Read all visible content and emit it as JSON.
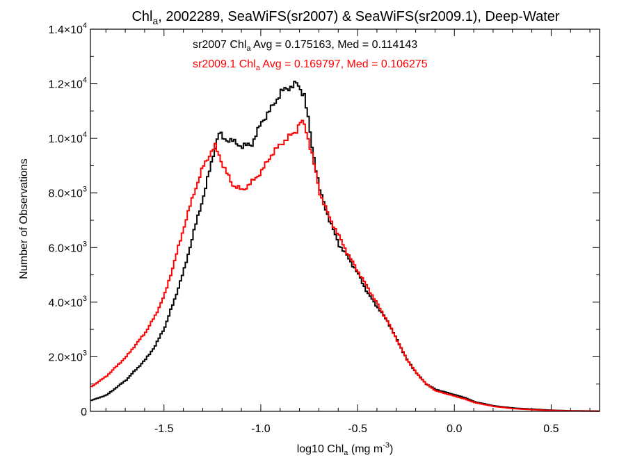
{
  "chart_data": {
    "type": "line",
    "title": {
      "prefix": "Chl",
      "sub": "a",
      "suffix": ", 2002289, SeaWiFS(sr2007) & SeaWiFS(sr2009.1), Deep-Water"
    },
    "xlabel": {
      "prefix": "log10 Chl",
      "sub": "a",
      "middle": " (mg m",
      "sup": "-3",
      "suffix": ")"
    },
    "ylabel": "Number of Observations",
    "xlim": [
      -1.88,
      0.75
    ],
    "ylim": [
      0,
      14000
    ],
    "x_ticks": [
      {
        "value": -1.5,
        "label": "-1.5"
      },
      {
        "value": -1.0,
        "label": "-1.0"
      },
      {
        "value": -0.5,
        "label": "-0.5"
      },
      {
        "value": 0.0,
        "label": "0.0"
      },
      {
        "value": 0.5,
        "label": "0.5"
      }
    ],
    "y_ticks": [
      {
        "value": 0,
        "mantissa": "0",
        "times": "",
        "base": "",
        "exp": ""
      },
      {
        "value": 2000,
        "mantissa": "2.0",
        "times": "×",
        "base": "10",
        "exp": "3"
      },
      {
        "value": 4000,
        "mantissa": "4.0",
        "times": "×",
        "base": "10",
        "exp": "3"
      },
      {
        "value": 6000,
        "mantissa": "6.0",
        "times": "×",
        "base": "10",
        "exp": "3"
      },
      {
        "value": 8000,
        "mantissa": "8.0",
        "times": "×",
        "base": "10",
        "exp": "3"
      },
      {
        "value": 10000,
        "mantissa": "1.0",
        "times": "×",
        "base": "10",
        "exp": "4"
      },
      {
        "value": 12000,
        "mantissa": "1.2",
        "times": "×",
        "base": "10",
        "exp": "4"
      },
      {
        "value": 14000,
        "mantissa": "1.4",
        "times": "×",
        "base": "10",
        "exp": "4"
      }
    ],
    "annotations": [
      {
        "prefix": "sr2007 Chl",
        "sub": "a",
        "suffix": " Avg = 0.175163, Med = 0.114143",
        "color": "#000000"
      },
      {
        "prefix": "sr2009.1 Chl",
        "sub": "a",
        "suffix": " Avg = 0.169797, Med = 0.106275",
        "color": "#ff0000"
      }
    ],
    "series": [
      {
        "color": "#000000",
        "x": [
          -1.88,
          -1.8,
          -1.7,
          -1.6,
          -1.55,
          -1.5,
          -1.45,
          -1.4,
          -1.35,
          -1.3,
          -1.27,
          -1.24,
          -1.22,
          -1.2,
          -1.15,
          -1.1,
          -1.05,
          -1.0,
          -0.95,
          -0.9,
          -0.85,
          -0.82,
          -0.8,
          -0.78,
          -0.76,
          -0.74,
          -0.72,
          -0.7,
          -0.65,
          -0.6,
          -0.55,
          -0.5,
          -0.45,
          -0.4,
          -0.35,
          -0.3,
          -0.25,
          -0.2,
          -0.15,
          -0.1,
          -0.05,
          0.0,
          0.05,
          0.1,
          0.2,
          0.3,
          0.4,
          0.5,
          0.6,
          0.75
        ],
        "values": [
          400,
          600,
          1150,
          1900,
          2400,
          3100,
          4100,
          5200,
          6600,
          7900,
          8800,
          9700,
          10200,
          10000,
          9900,
          9700,
          9800,
          10600,
          11100,
          11700,
          11900,
          12000,
          11800,
          11600,
          10700,
          9700,
          8900,
          8100,
          7000,
          6100,
          5600,
          5000,
          4300,
          3800,
          3300,
          2600,
          1900,
          1400,
          1000,
          800,
          700,
          600,
          500,
          350,
          200,
          120,
          80,
          40,
          20,
          10
        ]
      },
      {
        "color": "#ff0000",
        "x": [
          -1.88,
          -1.8,
          -1.7,
          -1.6,
          -1.55,
          -1.5,
          -1.45,
          -1.4,
          -1.35,
          -1.3,
          -1.27,
          -1.24,
          -1.22,
          -1.2,
          -1.15,
          -1.1,
          -1.05,
          -1.0,
          -0.95,
          -0.9,
          -0.85,
          -0.82,
          -0.8,
          -0.78,
          -0.76,
          -0.74,
          -0.72,
          -0.7,
          -0.65,
          -0.6,
          -0.55,
          -0.5,
          -0.45,
          -0.4,
          -0.35,
          -0.3,
          -0.25,
          -0.2,
          -0.15,
          -0.1,
          -0.05,
          0.0,
          0.05,
          0.1,
          0.2,
          0.3,
          0.4,
          0.5,
          0.6,
          0.75
        ],
        "values": [
          900,
          1300,
          2000,
          2900,
          3500,
          4300,
          5500,
          6800,
          8000,
          9000,
          9400,
          9700,
          9400,
          9000,
          8300,
          8100,
          8400,
          8800,
          9400,
          9800,
          10100,
          10300,
          10600,
          10500,
          10000,
          9400,
          8700,
          8000,
          7100,
          6400,
          5700,
          5100,
          4500,
          3900,
          3300,
          2600,
          1900,
          1400,
          1000,
          750,
          650,
          550,
          450,
          320,
          180,
          100,
          60,
          30,
          15,
          5
        ]
      }
    ]
  }
}
